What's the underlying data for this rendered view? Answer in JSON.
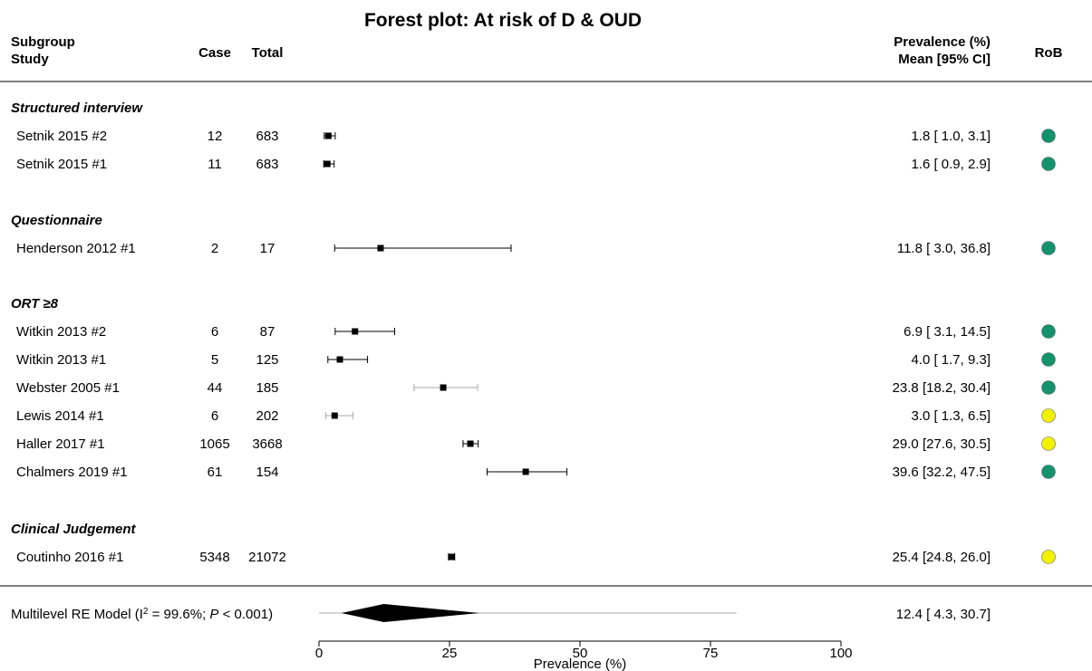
{
  "title": "Forest plot: At risk of D & OUD",
  "header": {
    "col_study_line1": "Subgroup",
    "col_study_line2": "Study",
    "col_case": "Case",
    "col_total": "Total",
    "col_est_line1": "Prevalence (%)",
    "col_est_line2": "Mean [95% CI]",
    "col_rob": "RoB"
  },
  "rob_colors": {
    "low": "#12936a",
    "some": "#f2f200"
  },
  "chart_data": {
    "type": "forest",
    "xlabel": "Prevalence (%)",
    "xlim": [
      0,
      100
    ],
    "xticks": [
      0,
      25,
      50,
      75,
      100
    ],
    "groups": [
      {
        "name": "Structured interview",
        "studies": [
          {
            "study": "Setnik 2015 #2",
            "case": "12",
            "total": "683",
            "mean": 1.8,
            "lo": 1.0,
            "hi": 3.1,
            "ci_text": "1.8 [ 1.0,  3.1]",
            "rob": "low"
          },
          {
            "study": "Setnik 2015 #1",
            "case": "11",
            "total": "683",
            "mean": 1.6,
            "lo": 0.9,
            "hi": 2.9,
            "ci_text": "1.6 [ 0.9,  2.9]",
            "rob": "low"
          }
        ]
      },
      {
        "name": "Questionnaire",
        "studies": [
          {
            "study": "Henderson 2012 #1",
            "case": "2",
            "total": "17",
            "mean": 11.8,
            "lo": 3.0,
            "hi": 36.8,
            "ci_text": "11.8 [ 3.0, 36.8]",
            "rob": "low"
          }
        ]
      },
      {
        "name": "ORT ≥8",
        "studies": [
          {
            "study": "Witkin 2013 #2",
            "case": "6",
            "total": "87",
            "mean": 6.9,
            "lo": 3.1,
            "hi": 14.5,
            "ci_text": "6.9 [ 3.1, 14.5]",
            "rob": "low"
          },
          {
            "study": "Witkin 2013 #1",
            "case": "5",
            "total": "125",
            "mean": 4.0,
            "lo": 1.7,
            "hi": 9.3,
            "ci_text": "4.0 [ 1.7,  9.3]",
            "rob": "low"
          },
          {
            "study": "Webster 2005 #1",
            "case": "44",
            "total": "185",
            "mean": 23.8,
            "lo": 18.2,
            "hi": 30.4,
            "ci_text": "23.8 [18.2, 30.4]",
            "rob": "low"
          },
          {
            "study": "Lewis 2014 #1",
            "case": "6",
            "total": "202",
            "mean": 3.0,
            "lo": 1.3,
            "hi": 6.5,
            "ci_text": "3.0 [ 1.3,  6.5]",
            "rob": "some"
          },
          {
            "study": "Haller 2017 #1",
            "case": "1065",
            "total": "3668",
            "mean": 29.0,
            "lo": 27.6,
            "hi": 30.5,
            "ci_text": "29.0 [27.6, 30.5]",
            "rob": "some"
          },
          {
            "study": "Chalmers 2019 #1",
            "case": "61",
            "total": "154",
            "mean": 39.6,
            "lo": 32.2,
            "hi": 47.5,
            "ci_text": "39.6 [32.2, 47.5]",
            "rob": "low"
          }
        ]
      },
      {
        "name": "Clinical Judgement",
        "studies": [
          {
            "study": "Coutinho 2016 #1",
            "case": "5348",
            "total": "21072",
            "mean": 25.4,
            "lo": 24.8,
            "hi": 26.0,
            "ci_text": "25.4 [24.8, 26.0]",
            "rob": "some"
          }
        ]
      }
    ],
    "summary": {
      "label_prefix": "Multilevel RE Model (I",
      "label_sup": "2",
      "label_mid": " = 99.6%; ",
      "label_p": "P",
      "label_suffix": " < 0.001)",
      "mean": 12.4,
      "lo": 4.3,
      "hi": 30.7,
      "pi_lo": 0,
      "pi_hi": 80,
      "ci_text": "12.4 [ 4.3, 30.7]"
    }
  }
}
